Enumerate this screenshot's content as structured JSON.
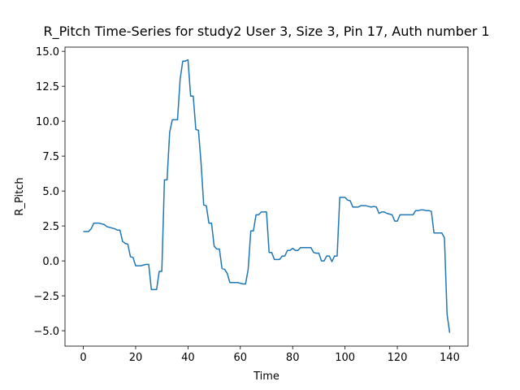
{
  "chart_data": {
    "type": "line",
    "title": "R_Pitch Time-Series for study2 User 3, Size 3, Pin 17, Auth number 1",
    "x_label": "Time",
    "y_label": "R_Pitch",
    "x": [
      0,
      1,
      2,
      3,
      4,
      5,
      6,
      7,
      8,
      9,
      10,
      11,
      12,
      13,
      14,
      15,
      16,
      17,
      18,
      19,
      20,
      21,
      22,
      23,
      24,
      25,
      26,
      27,
      28,
      29,
      30,
      31,
      32,
      33,
      34,
      35,
      36,
      37,
      38,
      39,
      40,
      41,
      42,
      43,
      44,
      45,
      46,
      47,
      48,
      49,
      50,
      51,
      52,
      53,
      54,
      55,
      56,
      57,
      58,
      59,
      60,
      61,
      62,
      63,
      64,
      65,
      66,
      67,
      68,
      69,
      70,
      71,
      72,
      73,
      74,
      75,
      76,
      77,
      78,
      79,
      80,
      81,
      82,
      83,
      84,
      85,
      86,
      87,
      88,
      89,
      90,
      91,
      92,
      93,
      94,
      95,
      96,
      97,
      98,
      99,
      100,
      101,
      102,
      103,
      104,
      105,
      106,
      107,
      108,
      109,
      110,
      111,
      112,
      113,
      114,
      115,
      116,
      117,
      118,
      119,
      120,
      121,
      122,
      123,
      124,
      125,
      126,
      127,
      128,
      129,
      130,
      131,
      132,
      133,
      134,
      135,
      136,
      137,
      138,
      139,
      140
    ],
    "series": [
      {
        "name": "R_Pitch",
        "color": "#1f77b4",
        "values": [
          2.1,
          2.1,
          2.1,
          2.3,
          2.7,
          2.7,
          2.7,
          2.65,
          2.6,
          2.45,
          2.4,
          2.35,
          2.3,
          2.2,
          2.2,
          1.4,
          1.25,
          1.2,
          0.3,
          0.25,
          -0.35,
          -0.35,
          -0.35,
          -0.3,
          -0.25,
          -0.25,
          -2.05,
          -2.05,
          -2.05,
          -0.75,
          -0.75,
          5.8,
          5.8,
          9.2,
          10.1,
          10.1,
          10.1,
          13.0,
          14.3,
          14.3,
          14.4,
          11.8,
          11.8,
          9.4,
          9.35,
          7.0,
          4.0,
          3.95,
          2.7,
          2.7,
          1.05,
          0.85,
          0.85,
          -0.55,
          -0.6,
          -0.9,
          -1.55,
          -1.55,
          -1.55,
          -1.55,
          -1.6,
          -1.65,
          -1.65,
          -0.6,
          2.15,
          2.15,
          3.3,
          3.3,
          3.5,
          3.5,
          3.5,
          0.6,
          0.6,
          0.1,
          0.1,
          0.1,
          0.35,
          0.35,
          0.75,
          0.75,
          0.9,
          0.75,
          0.75,
          0.95,
          0.95,
          0.95,
          0.95,
          0.95,
          0.6,
          0.55,
          0.55,
          0.0,
          0.0,
          0.35,
          0.35,
          -0.05,
          0.35,
          0.35,
          4.55,
          4.55,
          4.55,
          4.35,
          4.3,
          3.85,
          3.85,
          3.85,
          3.95,
          3.95,
          3.95,
          3.9,
          3.85,
          3.9,
          3.85,
          3.4,
          3.5,
          3.5,
          3.4,
          3.35,
          3.3,
          2.85,
          2.85,
          3.3,
          3.3,
          3.3,
          3.3,
          3.3,
          3.3,
          3.6,
          3.6,
          3.65,
          3.65,
          3.6,
          3.6,
          3.55,
          2.0,
          2.0,
          2.0,
          2.0,
          1.65,
          -3.8,
          -5.15
        ]
      }
    ],
    "xlim": [
      -7,
      147
    ],
    "ylim": [
      -6.1,
      15.3
    ],
    "xticks": [
      0,
      20,
      40,
      60,
      80,
      100,
      120,
      140
    ],
    "yticks": [
      {
        "value": -5,
        "label": "−5.0"
      },
      {
        "value": -2.5,
        "label": "−2.5"
      },
      {
        "value": 0,
        "label": "0.0"
      },
      2.5,
      {
        "value": 5,
        "label": "5.0"
      },
      7.5,
      {
        "value": 10,
        "label": "10.0"
      },
      12.5,
      {
        "value": 15,
        "label": "15.0"
      }
    ],
    "grid": false
  }
}
